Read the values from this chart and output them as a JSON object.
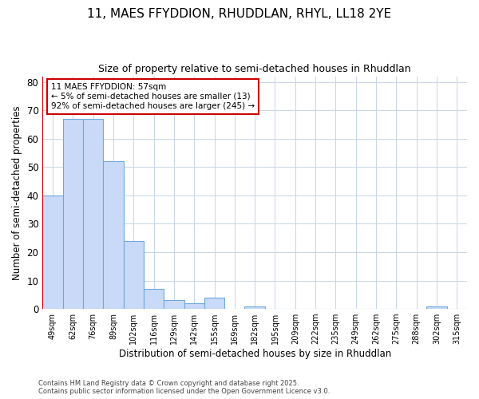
{
  "title1": "11, MAES FFYDDION, RHUDDLAN, RHYL, LL18 2YE",
  "title2": "Size of property relative to semi-detached houses in Rhuddlan",
  "xlabel": "Distribution of semi-detached houses by size in Rhuddlan",
  "ylabel": "Number of semi-detached properties",
  "categories": [
    "49sqm",
    "62sqm",
    "76sqm",
    "89sqm",
    "102sqm",
    "116sqm",
    "129sqm",
    "142sqm",
    "155sqm",
    "169sqm",
    "182sqm",
    "195sqm",
    "209sqm",
    "222sqm",
    "235sqm",
    "249sqm",
    "262sqm",
    "275sqm",
    "288sqm",
    "302sqm",
    "315sqm"
  ],
  "values": [
    40,
    67,
    67,
    52,
    24,
    7,
    3,
    2,
    4,
    0,
    1,
    0,
    0,
    0,
    0,
    0,
    0,
    0,
    0,
    1,
    0
  ],
  "bar_color": "#c9daf8",
  "bar_edge_color": "#6fa8dc",
  "grid_color": "#c8d4e8",
  "background_color": "#ffffff",
  "annotation_text": "11 MAES FFYDDION: 57sqm\n← 5% of semi-detached houses are smaller (13)\n92% of semi-detached houses are larger (245) →",
  "annotation_box_color": "#ffffff",
  "annotation_border_color": "#cc0000",
  "property_line_color": "#cc0000",
  "ylim": [
    0,
    82
  ],
  "yticks": [
    0,
    10,
    20,
    30,
    40,
    50,
    60,
    70,
    80
  ],
  "footnote": "Contains HM Land Registry data © Crown copyright and database right 2025.\nContains public sector information licensed under the Open Government Licence v3.0."
}
